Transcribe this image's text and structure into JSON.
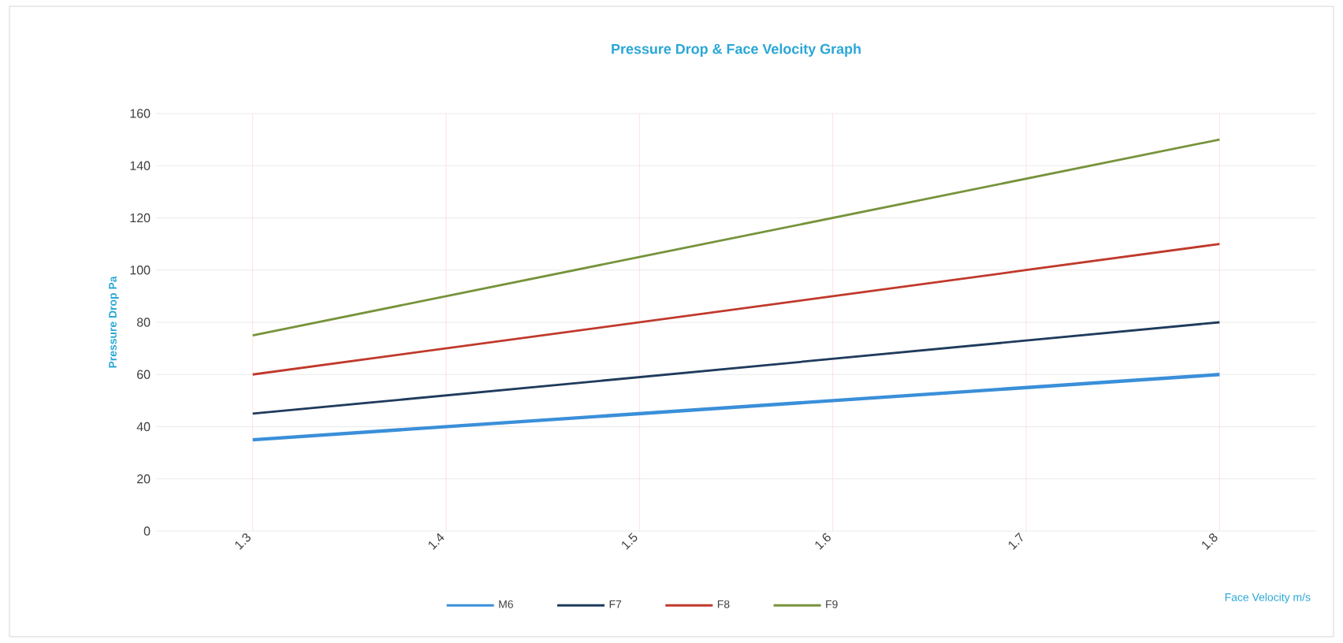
{
  "chart_data": {
    "type": "line",
    "title": "Pressure Drop  &  Face Velocity  Graph",
    "xlabel": "Face Velocity  m/s",
    "ylabel": "Pressure Drop  Pa",
    "categories": [
      "1.3",
      "1.4",
      "1.5",
      "1.6",
      "1.7",
      "1.8"
    ],
    "series": [
      {
        "name": "M6",
        "color": "#3a8fd9",
        "values": [
          35,
          40,
          45,
          50,
          55,
          60
        ]
      },
      {
        "name": "F7",
        "color": "#1f3b5c",
        "values": [
          45,
          52,
          59,
          66,
          73,
          80
        ]
      },
      {
        "name": "F8",
        "color": "#c0392b",
        "values": [
          60,
          70,
          80,
          90,
          100,
          110
        ]
      },
      {
        "name": "F9",
        "color": "#77933c",
        "values": [
          75,
          90,
          105,
          120,
          135,
          150
        ]
      }
    ],
    "ylim": [
      0,
      160
    ],
    "yticks": [
      0,
      20,
      40,
      60,
      80,
      100,
      120,
      140,
      160
    ],
    "grid": true,
    "legend": "bottom",
    "marker": "none",
    "line_style": "solid"
  }
}
